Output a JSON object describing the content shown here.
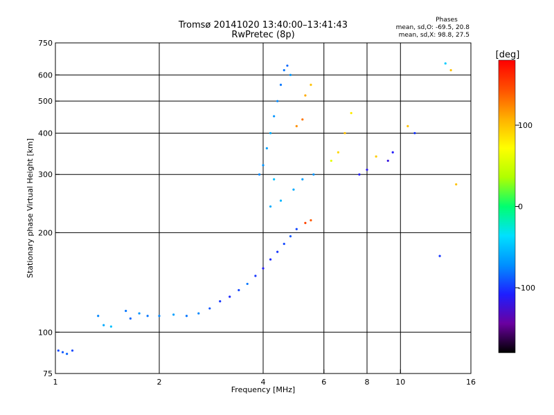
{
  "chart_data": {
    "type": "scatter",
    "title": "Tromsø 20141020 13:40:00–13:41:43",
    "subtitle": "RwPretec (8p)",
    "stats": {
      "heading": "Phases",
      "line1": "mean, sd,O: -69.5, 20.8",
      "line2": "mean, sd,X:  98.8, 27.5"
    },
    "xlabel": "Frequency [MHz]",
    "ylabel": "Stationary phase Virtual Height [km]",
    "x_scale": "log",
    "y_scale": "log",
    "xlim": [
      1,
      16
    ],
    "ylim": [
      75,
      750
    ],
    "x_ticks": [
      1,
      2,
      4,
      6,
      8,
      10,
      16
    ],
    "y_ticks": [
      75,
      100,
      200,
      300,
      400,
      500,
      600,
      750
    ],
    "grid_x": [
      2,
      4,
      6,
      8,
      10
    ],
    "grid_y": [
      100,
      200,
      300,
      400,
      500,
      600
    ],
    "grid": true,
    "colorbar": {
      "label": "[deg]",
      "range": [
        -180,
        180
      ],
      "ticks": [
        100,
        0,
        -100
      ]
    },
    "colormap": [
      "#000000",
      "#6a00a0",
      "#1e1eff",
      "#0090ff",
      "#00e0ff",
      "#00ff70",
      "#b0ff00",
      "#ffff00",
      "#ffb000",
      "#ff5000",
      "#ff0000"
    ],
    "series": [
      {
        "points": [
          [
            1.02,
            88,
            -95
          ],
          [
            1.05,
            87,
            -90
          ],
          [
            1.08,
            86,
            -85
          ],
          [
            1.12,
            88,
            -95
          ],
          [
            1.33,
            112,
            -75
          ],
          [
            1.38,
            105,
            -60
          ],
          [
            1.45,
            104,
            -50
          ],
          [
            1.6,
            116,
            -80
          ],
          [
            1.65,
            110,
            -85
          ],
          [
            1.75,
            114,
            -70
          ],
          [
            1.85,
            112,
            -80
          ],
          [
            2.0,
            112,
            -75
          ],
          [
            2.2,
            113,
            -65
          ],
          [
            2.4,
            112,
            -80
          ],
          [
            2.6,
            114,
            -75
          ],
          [
            2.8,
            118,
            -90
          ],
          [
            3.0,
            124,
            -100
          ],
          [
            3.2,
            128,
            -105
          ],
          [
            3.4,
            134,
            -95
          ],
          [
            3.6,
            140,
            -80
          ],
          [
            3.8,
            148,
            -100
          ],
          [
            4.0,
            156,
            -110
          ],
          [
            4.2,
            166,
            -105
          ],
          [
            4.4,
            175,
            -100
          ],
          [
            4.6,
            185,
            -95
          ],
          [
            4.8,
            195,
            -90
          ],
          [
            5.0,
            205,
            -95
          ],
          [
            5.3,
            214,
            150
          ],
          [
            5.5,
            218,
            140
          ]
        ]
      },
      {
        "points": [
          [
            3.9,
            300,
            -75
          ],
          [
            4.0,
            320,
            -70
          ],
          [
            4.1,
            360,
            -65
          ],
          [
            4.2,
            400,
            -60
          ],
          [
            4.3,
            450,
            -70
          ],
          [
            4.4,
            500,
            -75
          ],
          [
            4.5,
            560,
            -80
          ],
          [
            4.6,
            620,
            -80
          ],
          [
            4.7,
            640,
            -85
          ],
          [
            4.8,
            600,
            -70
          ],
          [
            4.2,
            240,
            -60
          ],
          [
            4.5,
            250,
            -55
          ],
          [
            4.9,
            270,
            -60
          ],
          [
            5.2,
            290,
            -65
          ],
          [
            5.6,
            300,
            -70
          ],
          [
            4.3,
            290,
            -50
          ]
        ]
      },
      {
        "points": [
          [
            5.0,
            420,
            120
          ],
          [
            5.2,
            440,
            130
          ],
          [
            5.3,
            520,
            110
          ],
          [
            5.5,
            560,
            100
          ],
          [
            6.3,
            330,
            60
          ],
          [
            6.6,
            350,
            90
          ],
          [
            6.9,
            400,
            100
          ],
          [
            7.2,
            460,
            80
          ],
          [
            7.6,
            300,
            -110
          ],
          [
            8.0,
            310,
            -115
          ],
          [
            8.5,
            340,
            95
          ],
          [
            9.2,
            330,
            -120
          ],
          [
            9.5,
            350,
            -110
          ],
          [
            10.5,
            420,
            100
          ],
          [
            11.0,
            400,
            -100
          ],
          [
            13.0,
            170,
            -100
          ],
          [
            13.5,
            650,
            -45
          ],
          [
            14.0,
            620,
            100
          ],
          [
            14.5,
            280,
            100
          ]
        ]
      }
    ]
  }
}
